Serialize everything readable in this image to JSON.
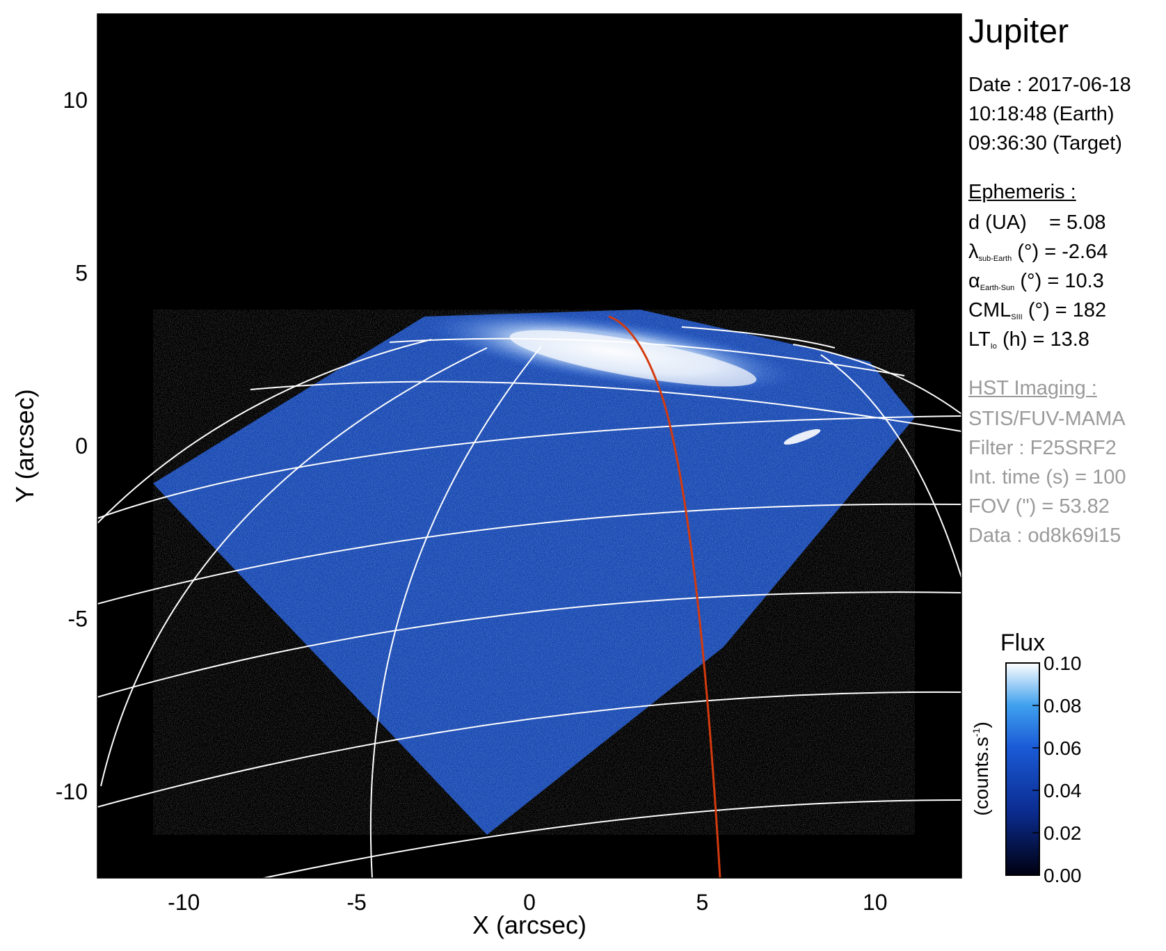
{
  "chart_data": {
    "type": "heatmap",
    "title": "",
    "xlabel": "X (arcsec)",
    "ylabel": "Y (arcsec)",
    "xlim": [
      -12.5,
      12.5
    ],
    "ylim": [
      -12.5,
      12.5
    ],
    "xticks": [
      -10,
      -5,
      0,
      5,
      10
    ],
    "yticks": [
      -10,
      -5,
      0,
      5,
      10
    ],
    "grid": true,
    "colormap": "black-blue-white",
    "colorbar": {
      "label": "Flux",
      "units_label": "(counts.s",
      "units_exp": "-1",
      "units_close": ")",
      "range": [
        0.0,
        0.1
      ],
      "ticks": [
        "0.10",
        "0.08",
        "0.06",
        "0.04",
        "0.02",
        "0.00"
      ]
    }
  },
  "planet": "Jupiter",
  "date_line": "Date : 2017-06-18",
  "earth_time": "10:18:48 (Earth)",
  "target_time": "09:36:30 (Target)",
  "ephemeris": {
    "title": "Ephemeris :",
    "d_label": "d (UA)",
    "d_value": "= 5.08",
    "lat_symbol": "λ",
    "lat_sub": "sub-Earth",
    "lat_rest": "(°) = -2.64",
    "phase_symbol": "α",
    "phase_sub": "Earth-Sun",
    "phase_rest": "(°) = 10.3",
    "cml_symbol": "CML",
    "cml_sub": "SIII",
    "cml_rest": "(°) = 182",
    "lt_symbol": "LT",
    "lt_sub": "Io",
    "lt_rest": "(h) = 13.8"
  },
  "hst": {
    "title": "HST Imaging :",
    "instrument": "STIS/FUV-MAMA",
    "filter": "Filter : F25SRF2",
    "int_time": "Int. time (s) = 100",
    "fov": "FOV (\") = 53.82",
    "data": "Data : od8k69i15"
  },
  "colors": {
    "background": "#000000",
    "emission_low": "#0a1a5c",
    "emission_mid": "#1a56c8",
    "emission_high": "#ffffff",
    "grid": "#ffffff",
    "io_footpath": "#d43a0e",
    "gray_text": "#9a9a9a"
  }
}
